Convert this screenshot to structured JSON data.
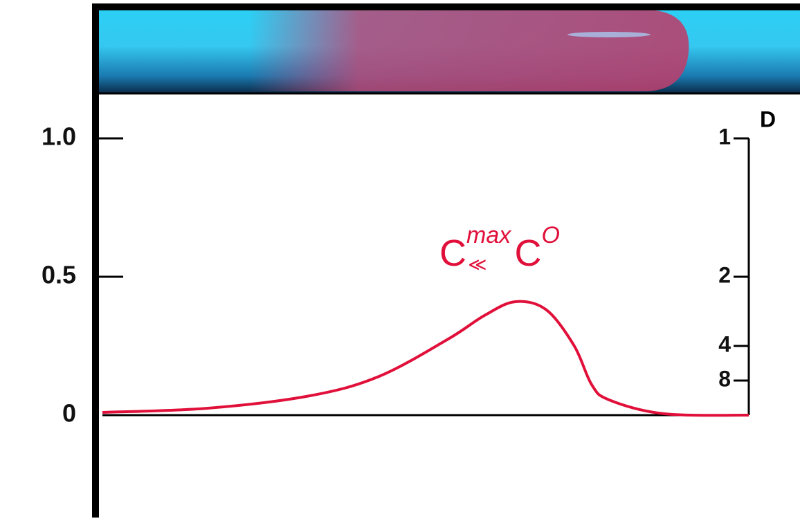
{
  "chart_data": {
    "type": "line",
    "x": [
      0,
      1.63,
      3.21,
      4.28,
      5.35,
      5.91,
      6.39,
      6.87,
      7.3,
      7.57,
      7.84,
      8.69,
      10
    ],
    "values": [
      0.01,
      0.025,
      0.07,
      0.14,
      0.275,
      0.36,
      0.41,
      0.38,
      0.25,
      0.11,
      0.055,
      0.005,
      0
    ],
    "color": "#e0103a",
    "xlim": [
      0,
      10
    ],
    "ylim": [
      -0.37,
      1.1625
    ],
    "yticks": [
      0,
      0.5,
      {
        "value": 1,
        "label": "1.0"
      }
    ],
    "y2label": "D",
    "y2scale": "reciprocal",
    "y2ticks": [
      1,
      2,
      4,
      8
    ],
    "annotation": {
      "base": "C",
      "sup": "max",
      "relation": "≪",
      "base2": "C",
      "sup2": "O"
    }
  }
}
